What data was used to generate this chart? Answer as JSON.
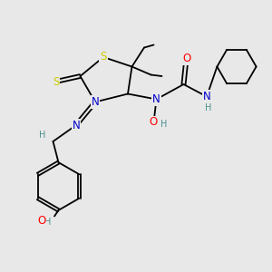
{
  "bg_color": "#e8e8e8",
  "atom_colors": {
    "C": "#000000",
    "N": "#0000cd",
    "O": "#ff0000",
    "S": "#cccc00",
    "H": "#4a9090"
  },
  "bond_color": "#000000",
  "bond_lw": 1.3,
  "font_size_atom": 8.5,
  "font_size_small": 7.0,
  "xlim": [
    0,
    10
  ],
  "ylim": [
    0,
    10
  ]
}
